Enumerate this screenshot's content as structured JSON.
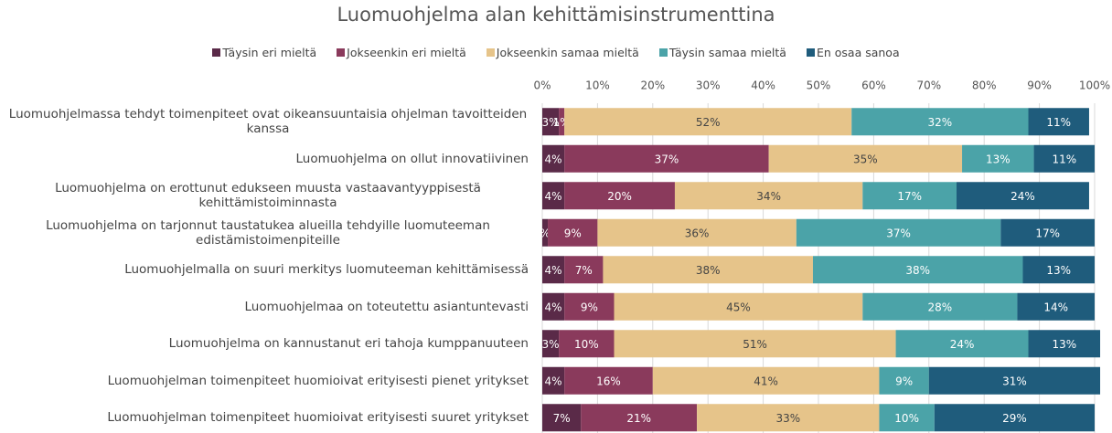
{
  "chart_data": {
    "type": "stacked_bar_horizontal",
    "title": "Luomuohjelma alan kehittämisinstrumenttina",
    "categories": [
      "Luomuohjelmassa tehdyt toimenpiteet ovat oikeansuuntaisia ohjelman tavoitteiden kanssa",
      "Luomuohjelma on ollut innovatiivinen",
      "Luomuohjelma on erottunut edukseen muusta vastaavantyyppisestä kehittämistoiminnasta",
      "Luomuohjelma on tarjonnut taustatukea alueilla tehdyille luomuteeman edistämistoimenpiteille",
      "Luomuohjelmalla on suuri merkitys luomuteeman kehittämisessä",
      "Luomuohjelmaa on toteutettu asiantuntevasti",
      "Luomuohjelma on kannustanut eri tahoja kumppanuuteen",
      "Luomuohjelman toimenpiteet huomioivat erityisesti pienet yritykset",
      "Luomuohjelman toimenpiteet huomioivat erityisesti suuret yritykset"
    ],
    "series": [
      {
        "name": "Täysin eri mieltä",
        "color": "#5a2a48",
        "values": [
          3,
          4,
          4,
          1,
          4,
          4,
          3,
          4,
          7
        ],
        "value_labels": [
          "3%",
          "4%",
          "4%",
          "%",
          "4%",
          "4%",
          "3%",
          "4%",
          "7%"
        ]
      },
      {
        "name": "Jokseenkin eri mieltä",
        "color": "#8a3a5c",
        "values": [
          1,
          37,
          20,
          9,
          7,
          9,
          10,
          16,
          21
        ],
        "value_labels": [
          "1%",
          "37%",
          "20%",
          "9%",
          "7%",
          "9%",
          "10%",
          "16%",
          "21%"
        ]
      },
      {
        "name": "Jokseenkin samaa mieltä",
        "color": "#e6c48a",
        "values": [
          52,
          35,
          34,
          36,
          38,
          45,
          51,
          41,
          33
        ],
        "value_labels": [
          "52%",
          "35%",
          "34%",
          "36%",
          "38%",
          "45%",
          "51%",
          "41%",
          "33%"
        ]
      },
      {
        "name": "Täysin samaa mieltä",
        "color": "#4ba3a8",
        "values": [
          32,
          13,
          17,
          37,
          38,
          28,
          24,
          9,
          10
        ],
        "value_labels": [
          "32%",
          "13%",
          "17%",
          "37%",
          "38%",
          "28%",
          "24%",
          "9%",
          "10%"
        ]
      },
      {
        "name": "En osaa sanoa",
        "color": "#1f5c7c",
        "values": [
          11,
          11,
          24,
          17,
          13,
          14,
          13,
          31,
          29
        ],
        "value_labels": [
          "11%",
          "11%",
          "24%",
          "17%",
          "13%",
          "14%",
          "13%",
          "31%",
          "29%"
        ]
      }
    ],
    "xlim": [
      0,
      100
    ],
    "xticks": [
      {
        "value": 0,
        "label": "0%"
      },
      {
        "value": 10,
        "label": "10%"
      },
      {
        "value": 20,
        "label": "20%"
      },
      {
        "value": 30,
        "label": "30%"
      },
      {
        "value": 40,
        "label": "40%"
      },
      {
        "value": 50,
        "label": "50%"
      },
      {
        "value": 60,
        "label": "60%"
      },
      {
        "value": 70,
        "label": "70%"
      },
      {
        "value": 80,
        "label": "80%"
      },
      {
        "value": 90,
        "label": "90%"
      },
      {
        "value": 100,
        "label": "100%"
      }
    ],
    "grid": true,
    "legend": "top"
  }
}
